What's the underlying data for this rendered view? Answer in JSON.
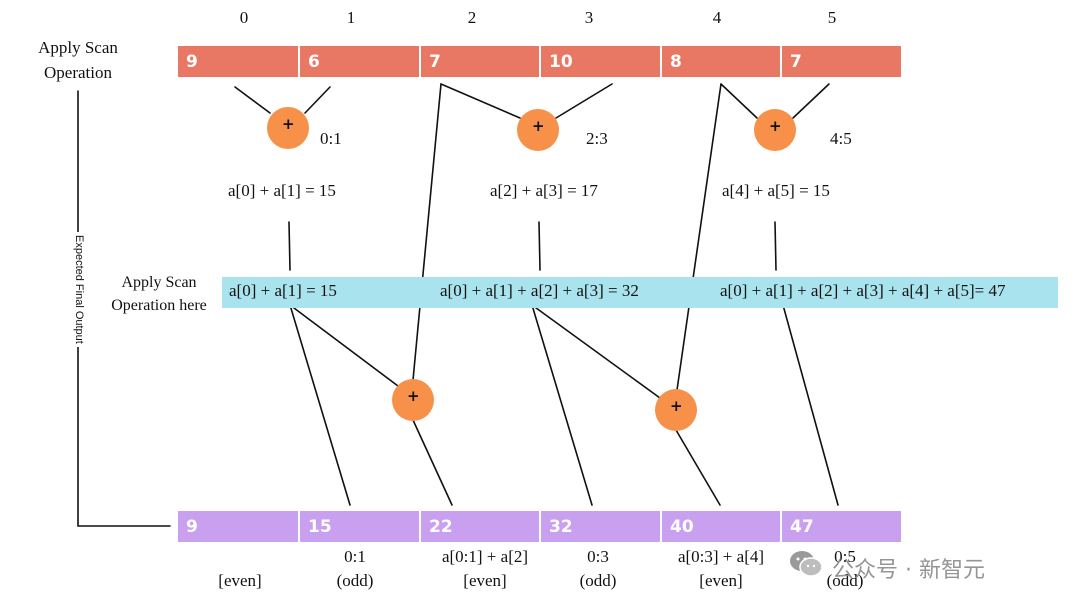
{
  "indices": [
    "0",
    "1",
    "2",
    "3",
    "4",
    "5"
  ],
  "side_labels": {
    "apply_scan": "Apply Scan\nOperation",
    "apply_scan_here": "Apply Scan\nOperation here",
    "expected_output": "Expected Final Output"
  },
  "input_values": [
    "9",
    "6",
    "7",
    "10",
    "8",
    "7"
  ],
  "pair_ranges": [
    "0:1",
    "2:3",
    "4:5"
  ],
  "pair_sums": [
    "a[0] + a[1] = 15",
    "a[2] + a[3] = 17",
    "a[4] + a[5] = 15"
  ],
  "scan_results": [
    "a[0] + a[1] = 15",
    "a[0] + a[1] + a[2] + a[3] = 32",
    "a[0] + a[1] + a[2] + a[3] + a[4] + a[5]= 47"
  ],
  "output_values": [
    "9",
    "15",
    "22",
    "32",
    "40",
    "47"
  ],
  "output_labels": [
    {
      "line1": "",
      "line2": "[even]"
    },
    {
      "line1": "0:1",
      "line2": "(odd)"
    },
    {
      "line1": "a[0:1] + a[2]",
      "line2": "[even]"
    },
    {
      "line1": "0:3",
      "line2": "(odd)"
    },
    {
      "line1": "a[0:3] + a[4]",
      "line2": "[even]"
    },
    {
      "line1": "0:5",
      "line2": "(odd)"
    }
  ],
  "operator_symbol": "+",
  "watermark": "公众号 · 新智元",
  "colors": {
    "input_row": "#e87763",
    "output_row": "#c9a0f0",
    "scan_band": "#a9e4ee",
    "operator": "#f7914a"
  },
  "icons": [
    "wechat-icon"
  ]
}
